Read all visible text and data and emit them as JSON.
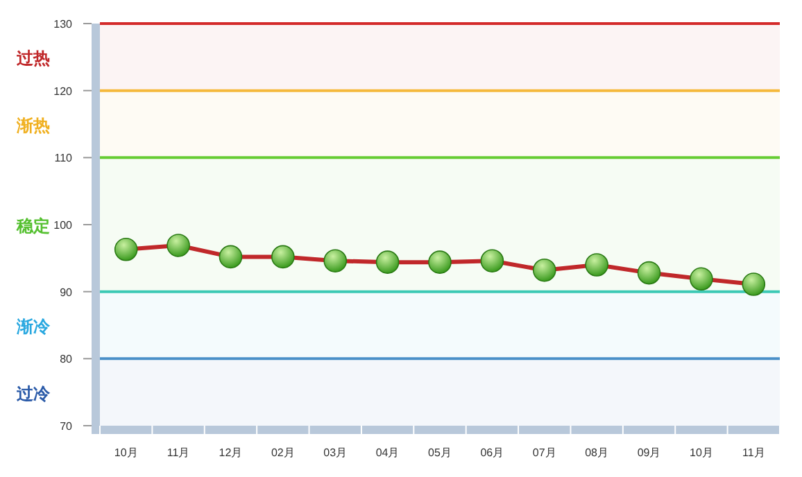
{
  "chart_data": {
    "type": "line",
    "categories": [
      "10月",
      "11月",
      "12月",
      "02月",
      "03月",
      "04月",
      "05月",
      "06月",
      "07月",
      "08月",
      "09月",
      "10月",
      "11月"
    ],
    "series": [
      {
        "color": "#c0282a",
        "colors": [
          "#3a9a1e",
          "#3a9a1e",
          "#3a9a1e",
          "#3a9a1e",
          "#3a9a1e",
          "#3a9a1e",
          "#3a9a1e",
          "#3a9a1e",
          "#3a9a1e",
          "#3a9a1e",
          "#3a9a1e",
          "#3a9a1e",
          "#3a9a1e"
        ],
        "values": [
          96.3,
          96.9,
          95.2,
          95.2,
          94.6,
          94.4,
          94.4,
          94.6,
          93.2,
          94.0,
          92.8,
          91.9,
          91.1
        ]
      }
    ],
    "ylim": [
      70,
      130
    ],
    "yticks": [
      70,
      80,
      90,
      100,
      110,
      120,
      130
    ],
    "marker": "circle",
    "line_style": "solid",
    "grid": false,
    "ref_lines": [
      {
        "axis": "y",
        "value": 130,
        "color": "#d42a2a"
      },
      {
        "axis": "y",
        "value": 120,
        "color": "#f5b93c"
      },
      {
        "axis": "y",
        "value": 110,
        "color": "#66cc33"
      },
      {
        "axis": "y",
        "value": 90,
        "color": "#3cc9b5"
      },
      {
        "axis": "y",
        "value": 80,
        "color": "#4a90c8"
      }
    ],
    "bands": [
      {
        "axis": "y",
        "from": 120,
        "to": 130,
        "label": "过热",
        "color": "#c0282a"
      },
      {
        "axis": "y",
        "from": 110,
        "to": 120,
        "label": "渐热",
        "color": "#f0b020"
      },
      {
        "axis": "y",
        "from": 90,
        "to": 110,
        "label": "稳定",
        "color": "#55c030"
      },
      {
        "axis": "y",
        "from": 80,
        "to": 90,
        "label": "渐冷",
        "color": "#29a8e0"
      },
      {
        "axis": "y",
        "from": 70,
        "to": 80,
        "label": "过冷",
        "color": "#2a5aa8"
      }
    ]
  }
}
